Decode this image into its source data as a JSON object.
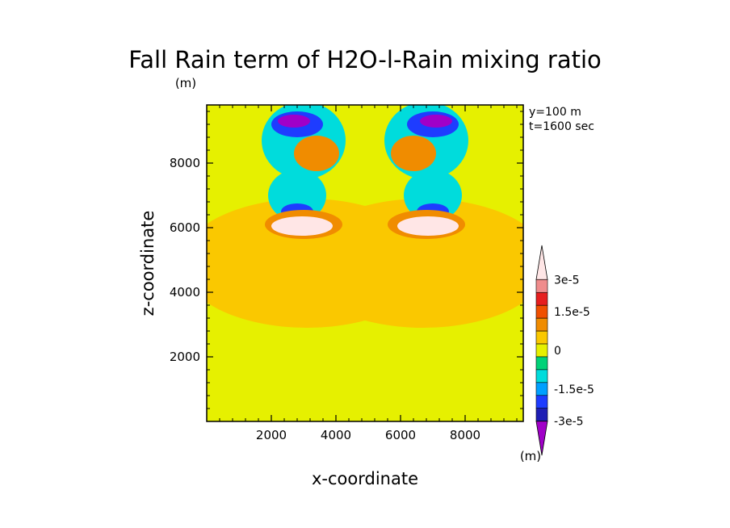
{
  "chart_data": {
    "type": "heatmap",
    "title": "Fall Rain term of H2O-l-Rain mixing ratio",
    "xlabel": "x-coordinate",
    "ylabel": "z-coordinate",
    "xunit": "(m)",
    "yunit": "(m)",
    "colorbar_unit": "(m)",
    "annotations": [
      "y=100 m",
      "t=1600 sec"
    ],
    "xlim": [
      0,
      9800
    ],
    "ylim": [
      0,
      9800
    ],
    "x_ticks": [
      2000,
      4000,
      6000,
      8000
    ],
    "y_ticks": [
      2000,
      4000,
      6000,
      8000
    ],
    "x_tick_labels": [
      "2000",
      "4000",
      "6000",
      "8000"
    ],
    "y_tick_labels": [
      "2000",
      "4000",
      "6000",
      "8000"
    ],
    "colorbar_levels": [
      -3e-05,
      -2.5e-05,
      -2e-05,
      -1.5e-05,
      -1e-05,
      -5e-06,
      0,
      5e-06,
      1e-05,
      1.5e-05,
      2e-05,
      2.5e-05,
      3e-05
    ],
    "colorbar_colors": [
      "#a000c8",
      "#1e1eb4",
      "#1e3cff",
      "#00a0ff",
      "#00dcdc",
      "#00d278",
      "#e6f000",
      "#fac800",
      "#f08c00",
      "#f05000",
      "#e61e1e",
      "#f08c8c",
      "#ffe6e6"
    ],
    "colorbar_labels": [
      "3e-5",
      "1.5e-5",
      "0",
      "-1.5e-5",
      "-3e-5"
    ],
    "colorbar_label_values": [
      3e-05,
      1.5e-05,
      0,
      -1.5e-05,
      -3e-05
    ],
    "background_value": 2e-06,
    "features": [
      {
        "shape": "ellipse",
        "cx": 3100,
        "cy": 4900,
        "rx": 3900,
        "ry": 2000,
        "value": 7e-06
      },
      {
        "shape": "ellipse",
        "cx": 6700,
        "cy": 4900,
        "rx": 3900,
        "ry": 2000,
        "value": 7e-06
      },
      {
        "shape": "ellipse",
        "cx": 4900,
        "cy": 8300,
        "rx": 1100,
        "ry": 1500,
        "value": 2e-06
      },
      {
        "shape": "ellipse",
        "cx": 5000,
        "cy": 9700,
        "rx": 4900,
        "ry": 500,
        "value": 2e-06
      },
      {
        "shape": "ellipse",
        "cx": 3000,
        "cy": 8700,
        "rx": 1300,
        "ry": 1200,
        "value": -1e-05
      },
      {
        "shape": "ellipse",
        "cx": 6800,
        "cy": 8700,
        "rx": 1300,
        "ry": 1200,
        "value": -1e-05
      },
      {
        "shape": "ellipse",
        "cx": 2800,
        "cy": 7000,
        "rx": 900,
        "ry": 800,
        "value": -1e-05
      },
      {
        "shape": "ellipse",
        "cx": 7000,
        "cy": 7000,
        "rx": 900,
        "ry": 800,
        "value": -1e-05
      },
      {
        "shape": "ellipse",
        "cx": 2800,
        "cy": 9200,
        "rx": 800,
        "ry": 400,
        "value": -2e-05
      },
      {
        "shape": "ellipse",
        "cx": 7000,
        "cy": 9200,
        "rx": 800,
        "ry": 400,
        "value": -2e-05
      },
      {
        "shape": "ellipse",
        "cx": 2700,
        "cy": 9300,
        "rx": 500,
        "ry": 200,
        "value": -2.8e-05
      },
      {
        "shape": "ellipse",
        "cx": 7100,
        "cy": 9300,
        "rx": 500,
        "ry": 200,
        "value": -2.8e-05
      },
      {
        "shape": "ellipse",
        "cx": 2800,
        "cy": 6500,
        "rx": 500,
        "ry": 250,
        "value": -2e-05
      },
      {
        "shape": "ellipse",
        "cx": 7000,
        "cy": 6500,
        "rx": 500,
        "ry": 250,
        "value": -2e-05
      },
      {
        "shape": "ellipse",
        "cx": 3400,
        "cy": 8300,
        "rx": 700,
        "ry": 550,
        "value": 1.2e-05
      },
      {
        "shape": "ellipse",
        "cx": 6400,
        "cy": 8300,
        "rx": 700,
        "ry": 550,
        "value": 1.2e-05
      },
      {
        "shape": "ellipse",
        "cx": 3000,
        "cy": 6100,
        "rx": 1200,
        "ry": 450,
        "value": 1.2e-05
      },
      {
        "shape": "ellipse",
        "cx": 6800,
        "cy": 6100,
        "rx": 1200,
        "ry": 450,
        "value": 1.2e-05
      },
      {
        "shape": "ellipse",
        "cx": 2950,
        "cy": 6050,
        "rx": 950,
        "ry": 300,
        "value": 2.8e-05
      },
      {
        "shape": "ellipse",
        "cx": 6850,
        "cy": 6050,
        "rx": 950,
        "ry": 300,
        "value": 2.8e-05
      }
    ]
  }
}
